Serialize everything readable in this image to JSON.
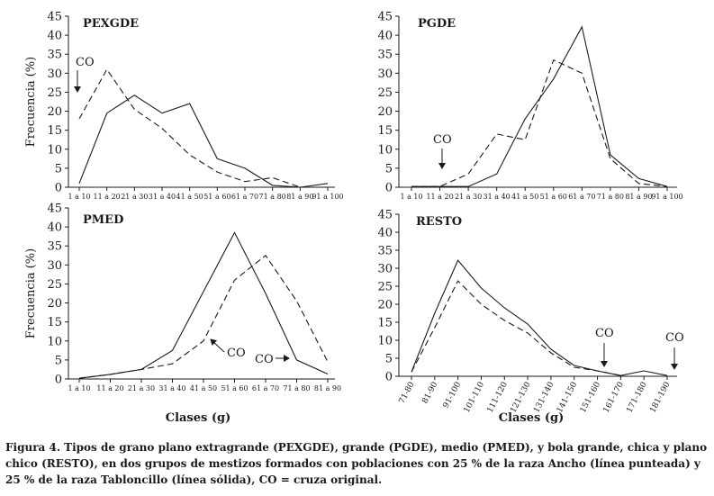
{
  "chart_data": [
    {
      "type": "line",
      "title": "PEXGDE",
      "ylabel": "Frecuencia (%)",
      "ylim": [
        0,
        45
      ],
      "yticks": [
        "0",
        "5",
        "10",
        "15",
        "20",
        "25",
        "30",
        "35",
        "40",
        "45"
      ],
      "categories": [
        "1 a 10",
        "11 a 20",
        "21 a 30",
        "31 a 40",
        "41 a 50",
        "51 a 60",
        "61 a 70",
        "71 a 80",
        "81 a 90",
        "91 a 100"
      ],
      "series": [
        {
          "name": "Tabloncillo (línea sólida)",
          "style": "solid",
          "values": [
            1,
            19.5,
            24.2,
            19.5,
            22,
            7.5,
            5,
            0.5,
            0,
            1
          ]
        },
        {
          "name": "Ancho (línea punteada)",
          "style": "dashed",
          "values": [
            18,
            31,
            20.5,
            15.5,
            8.5,
            4,
            1.5,
            2.5,
            0,
            null
          ]
        }
      ],
      "annotations": [
        {
          "text": "CO",
          "category_index": 0,
          "arrow": "down"
        }
      ]
    },
    {
      "type": "line",
      "title": "PGDE",
      "ylabel": "",
      "ylim": [
        0,
        45
      ],
      "yticks": [
        "0",
        "5",
        "10",
        "15",
        "20",
        "25",
        "30",
        "35",
        "40",
        "45"
      ],
      "categories": [
        "1 a 10",
        "11 a 20",
        "21 a 30",
        "31 a 40",
        "41 a 50",
        "51 a 60",
        "61 a 70",
        "71 a 80",
        "81 a 90",
        "91 a 100"
      ],
      "series": [
        {
          "name": "Tabloncillo (línea sólida)",
          "style": "solid",
          "values": [
            0.2,
            0.2,
            0.2,
            3.5,
            18,
            28.5,
            42.2,
            8.5,
            2.3,
            0.2
          ]
        },
        {
          "name": "Ancho (línea punteada)",
          "style": "dashed",
          "values": [
            0.2,
            0.2,
            3.5,
            14,
            12.5,
            33.5,
            30,
            7.5,
            1,
            0.2
          ]
        }
      ],
      "annotations": [
        {
          "text": "CO",
          "category_index": 1,
          "arrow": "down"
        }
      ]
    },
    {
      "type": "line",
      "title": "PMED",
      "ylabel": "Frecuencia (%)",
      "ylim": [
        0,
        45
      ],
      "yticks": [
        "0",
        "5",
        "10",
        "15",
        "20",
        "25",
        "30",
        "35",
        "40",
        "45"
      ],
      "categories": [
        "1 a 10",
        "11 a 20",
        "21 a 30",
        "31 a 40",
        "41 a 50",
        "51 a 60",
        "61 a 70",
        "71 a 80",
        "81 a 90"
      ],
      "series": [
        {
          "name": "Tabloncillo (línea sólida)",
          "style": "solid",
          "values": [
            0.2,
            1.2,
            2.5,
            7.5,
            23,
            38.5,
            22.5,
            5,
            1.3
          ]
        },
        {
          "name": "Ancho (línea punteada)",
          "style": "dashed",
          "values": [
            0.2,
            1.2,
            2.5,
            4,
            10,
            26,
            32.5,
            20.5,
            4.5
          ]
        }
      ],
      "annotations": [
        {
          "text": "CO",
          "category_index": 4,
          "arrow": "up-left"
        },
        {
          "text": "CO",
          "category_index": 7,
          "arrow": "right"
        }
      ]
    },
    {
      "type": "line",
      "title": "RESTO",
      "ylabel": "",
      "xlabel": "Clases (g)",
      "ylim": [
        0,
        45
      ],
      "yticks": [
        "0",
        "5",
        "10",
        "15",
        "20",
        "25",
        "30",
        "35",
        "40",
        "45"
      ],
      "categories": [
        "71-80",
        "81-90",
        "91-100",
        "101-110",
        "111-120",
        "121-130",
        "131-140",
        "141-150",
        "151-160",
        "161-170",
        "171-180",
        "181-190"
      ],
      "series": [
        {
          "name": "Tabloncillo (línea sólida)",
          "style": "solid",
          "values": [
            1.2,
            17.5,
            32.2,
            24.5,
            19,
            14.5,
            7.5,
            3,
            1.5,
            0.2,
            1.5,
            0.2
          ]
        },
        {
          "name": "Ancho (línea punteada)",
          "style": "dashed",
          "values": [
            1.2,
            13.5,
            26.5,
            20,
            15.5,
            12,
            6.5,
            2.5,
            1.5,
            0.2,
            null,
            null
          ]
        }
      ],
      "annotations": [
        {
          "text": "CO",
          "category_index": 8,
          "arrow": "down"
        },
        {
          "text": "CO",
          "category_index": 11,
          "arrow": "down"
        }
      ]
    }
  ],
  "figure": {
    "xlabel": "Clases (g)",
    "caption": "Figura 4. Tipos de grano plano extragrande (PEXGDE), grande (PGDE), medio (PMED), y bola grande, chica y plano chico (RESTO), en dos grupos de mestizos formados con poblaciones con 25 % de la raza Ancho (línea punteada) y 25 % de la raza Tabloncillo (línea sólida), CO = cruza original."
  }
}
